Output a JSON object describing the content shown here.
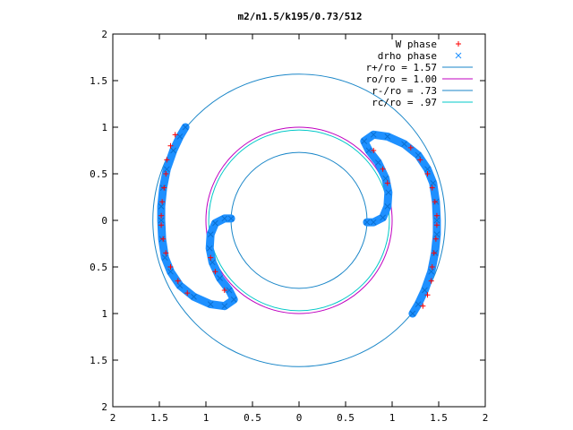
{
  "chart_data": {
    "type": "scatter",
    "title": "m2/n1.5/k195/0.73/512",
    "xlabel": "",
    "ylabel": "",
    "xlim": [
      -2,
      2
    ],
    "ylim": [
      -2,
      2
    ],
    "x_tick_labels": [
      "2",
      "1.5",
      "1",
      "0.5",
      "0",
      "0.5",
      "1",
      "1.5",
      "2"
    ],
    "y_tick_labels": [
      "2",
      "1.5",
      "1",
      "0.5",
      "0",
      "0.5",
      "1",
      "1.5",
      "2"
    ],
    "x_ticks": [
      -2,
      -1.5,
      -1,
      -0.5,
      0,
      0.5,
      1,
      1.5,
      2
    ],
    "y_ticks": [
      2,
      1.5,
      1,
      0.5,
      0,
      -0.5,
      -1,
      -1.5,
      -2
    ],
    "grid": false,
    "legend_position": "top-right",
    "colors": {
      "w_phase": "#ff0000",
      "drho_phase": "#1e90ff",
      "r_plus": "#1a86c8",
      "ro": "#c000c0",
      "r_minus": "#1a86c8",
      "rc": "#00c8c8"
    },
    "circles": [
      {
        "name": "r+/ro = 1.57",
        "radius": 1.57,
        "color": "#1a86c8"
      },
      {
        "name": "ro/ro = 1.00",
        "radius": 1.0,
        "color": "#c000c0"
      },
      {
        "name": "r-/ro = .73",
        "radius": 0.73,
        "color": "#1a86c8"
      },
      {
        "name": "rc/ro = .97",
        "radius": 0.97,
        "color": "#00c8c8"
      }
    ],
    "series": [
      {
        "name": "W phase",
        "marker": "+",
        "color": "#ff0000",
        "points": [
          [
            -1.48,
            0.05
          ],
          [
            -1.47,
            0.2
          ],
          [
            -1.45,
            0.35
          ],
          [
            -1.43,
            0.5
          ],
          [
            -1.42,
            0.65
          ],
          [
            -1.38,
            0.8
          ],
          [
            -1.33,
            0.92
          ],
          [
            -1.48,
            -0.05
          ],
          [
            -1.46,
            -0.2
          ],
          [
            -1.43,
            -0.35
          ],
          [
            -1.38,
            -0.5
          ],
          [
            -1.3,
            -0.65
          ],
          [
            -1.2,
            -0.78
          ],
          [
            -0.95,
            -0.4
          ],
          [
            -0.9,
            -0.55
          ],
          [
            -0.8,
            -0.75
          ],
          [
            1.48,
            -0.05
          ],
          [
            1.47,
            -0.2
          ],
          [
            1.45,
            -0.35
          ],
          [
            1.43,
            -0.5
          ],
          [
            1.42,
            -0.65
          ],
          [
            1.38,
            -0.8
          ],
          [
            1.33,
            -0.92
          ],
          [
            1.48,
            0.05
          ],
          [
            1.46,
            0.2
          ],
          [
            1.43,
            0.35
          ],
          [
            1.38,
            0.5
          ],
          [
            1.3,
            0.65
          ],
          [
            1.2,
            0.78
          ],
          [
            0.95,
            0.4
          ],
          [
            0.9,
            0.55
          ],
          [
            0.8,
            0.75
          ]
        ]
      },
      {
        "name": "drho phase",
        "marker": "x",
        "color": "#1e90ff",
        "arms": [
          [
            [
              -1.22,
              1.0
            ],
            [
              -1.28,
              0.9
            ],
            [
              -1.35,
              0.75
            ],
            [
              -1.42,
              0.55
            ],
            [
              -1.46,
              0.35
            ],
            [
              -1.48,
              0.15
            ],
            [
              -1.48,
              0.0
            ],
            [
              -1.47,
              -0.2
            ],
            [
              -1.44,
              -0.4
            ],
            [
              -1.38,
              -0.55
            ],
            [
              -1.28,
              -0.7
            ],
            [
              -1.13,
              -0.82
            ],
            [
              -0.95,
              -0.9
            ],
            [
              -0.8,
              -0.92
            ],
            [
              -0.7,
              -0.85
            ],
            [
              -0.75,
              -0.75
            ],
            [
              -0.85,
              -0.62
            ],
            [
              -0.93,
              -0.45
            ],
            [
              -0.96,
              -0.3
            ],
            [
              -0.95,
              -0.15
            ],
            [
              -0.9,
              -0.03
            ],
            [
              -0.8,
              0.02
            ],
            [
              -0.73,
              0.02
            ]
          ],
          [
            [
              1.22,
              -1.0
            ],
            [
              1.28,
              -0.9
            ],
            [
              1.35,
              -0.75
            ],
            [
              1.42,
              -0.55
            ],
            [
              1.46,
              -0.35
            ],
            [
              1.48,
              -0.15
            ],
            [
              1.48,
              0.0
            ],
            [
              1.47,
              0.2
            ],
            [
              1.44,
              0.4
            ],
            [
              1.38,
              0.55
            ],
            [
              1.28,
              0.7
            ],
            [
              1.13,
              0.82
            ],
            [
              0.95,
              0.9
            ],
            [
              0.8,
              0.92
            ],
            [
              0.7,
              0.85
            ],
            [
              0.75,
              0.75
            ],
            [
              0.85,
              0.62
            ],
            [
              0.93,
              0.45
            ],
            [
              0.96,
              0.3
            ],
            [
              0.95,
              0.15
            ],
            [
              0.9,
              0.03
            ],
            [
              0.8,
              -0.02
            ],
            [
              0.73,
              -0.02
            ]
          ]
        ]
      }
    ],
    "legend": [
      {
        "label": "W phase",
        "style": "plus",
        "color": "#ff0000"
      },
      {
        "label": "drho phase",
        "style": "cross",
        "color": "#1e90ff"
      },
      {
        "label": "r+/ro = 1.57",
        "style": "line",
        "color": "#1a86c8"
      },
      {
        "label": "ro/ro = 1.00",
        "style": "line",
        "color": "#c000c0"
      },
      {
        "label": "r-/ro = .73",
        "style": "line",
        "color": "#1a86c8"
      },
      {
        "label": "rc/ro = .97",
        "style": "line",
        "color": "#00c8c8"
      }
    ]
  }
}
